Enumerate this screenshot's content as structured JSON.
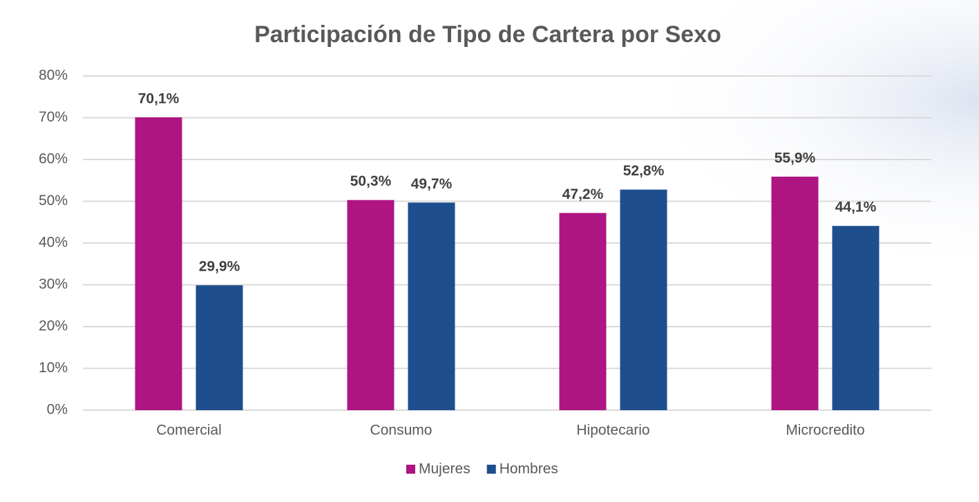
{
  "chart_data": {
    "type": "bar",
    "title": "Participación de Tipo de Cartera por Sexo",
    "categories": [
      "Comercial",
      "Consumo",
      "Hipotecario",
      "Microcredito"
    ],
    "series": [
      {
        "name": "Mujeres",
        "color": "#ae1582",
        "values": [
          70.1,
          50.3,
          47.2,
          55.9
        ],
        "value_labels": [
          "70,1%",
          "50,3%",
          "47,2%",
          "55,9%"
        ]
      },
      {
        "name": "Hombres",
        "color": "#1f4e8f",
        "values": [
          29.9,
          49.7,
          52.8,
          44.1
        ],
        "value_labels": [
          "29,9%",
          "49,7%",
          "52,8%",
          "44,1%"
        ]
      }
    ],
    "ylim": [
      0,
      80
    ],
    "yticks": [
      {
        "value": 0,
        "label": "0%"
      },
      {
        "value": 10,
        "label": "10%"
      },
      {
        "value": 20,
        "label": "20%"
      },
      {
        "value": 30,
        "label": "30%"
      },
      {
        "value": 40,
        "label": "40%"
      },
      {
        "value": 50,
        "label": "50%"
      },
      {
        "value": 60,
        "label": "60%"
      },
      {
        "value": 70,
        "label": "70%"
      },
      {
        "value": 80,
        "label": "80%"
      }
    ],
    "grid": true,
    "legend": "bottom"
  }
}
